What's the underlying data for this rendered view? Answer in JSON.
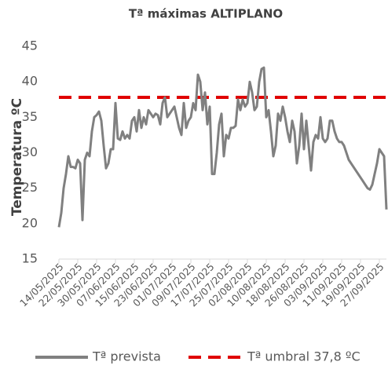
{
  "chart_data": {
    "type": "line",
    "title": "Tª máximas ALTIPLANO",
    "y_label": "Temperatura ºC",
    "categories": [
      "14/05/2025",
      null,
      null,
      null,
      null,
      null,
      null,
      null,
      "22/05/2025",
      null,
      null,
      null,
      null,
      null,
      null,
      null,
      "30/05/2025",
      null,
      null,
      null,
      null,
      null,
      null,
      null,
      "07/06/2025",
      null,
      null,
      null,
      null,
      null,
      null,
      null,
      "15/06/2025",
      null,
      null,
      null,
      null,
      null,
      null,
      null,
      "23/06/2025",
      null,
      null,
      null,
      null,
      null,
      null,
      null,
      "01/07/2025",
      null,
      null,
      null,
      null,
      null,
      null,
      null,
      "09/07/2025",
      null,
      null,
      null,
      null,
      null,
      null,
      null,
      "17/07/2025",
      null,
      null,
      null,
      null,
      null,
      null,
      null,
      "25/07/2025",
      null,
      null,
      null,
      null,
      null,
      null,
      null,
      "02/08/2025",
      null,
      null,
      null,
      null,
      null,
      null,
      null,
      "10/08/2025",
      null,
      null,
      null,
      null,
      null,
      null,
      null,
      "18/08/2025",
      null,
      null,
      null,
      null,
      null,
      null,
      null,
      "26/08/2025",
      null,
      null,
      null,
      null,
      null,
      null,
      null,
      "03/09/2025",
      null,
      null,
      null,
      null,
      null,
      null,
      null,
      "11/09/2025",
      null,
      null,
      null,
      null,
      null,
      null,
      null,
      "19/09/2025",
      null,
      null,
      null,
      null,
      null,
      null,
      null,
      "27/09/2025",
      null,
      null,
      null
    ],
    "series": [
      {
        "name": "Tª prevista",
        "color": "#808080",
        "values": [
          19.5,
          21.5,
          25,
          27,
          29.5,
          28,
          28,
          27.8,
          29,
          28.5,
          20.5,
          29,
          30,
          29.5,
          33,
          35,
          35.3,
          35.8,
          34.5,
          31,
          27.8,
          28.5,
          30.5,
          30.5,
          37,
          32,
          31.8,
          33,
          32,
          32.5,
          32,
          34.5,
          35,
          33,
          36,
          33.5,
          35,
          34,
          36,
          35.5,
          35,
          35.5,
          35.3,
          34,
          37,
          37.8,
          35,
          35.5,
          36,
          36.5,
          35,
          33.5,
          32.5,
          37,
          33.5,
          34.5,
          35,
          37,
          36,
          41,
          40,
          36,
          38.5,
          34,
          36.5,
          27,
          27,
          30,
          34,
          35.5,
          29.5,
          32.5,
          32,
          33.5,
          33.5,
          33.8,
          37.5,
          36,
          37.5,
          36.5,
          37,
          40,
          38.5,
          36,
          36.5,
          40,
          41.8,
          42,
          35,
          36,
          33,
          29.5,
          31,
          35.5,
          34.5,
          36.5,
          35,
          33,
          31.5,
          34.5,
          33,
          28.5,
          31,
          35.5,
          30.5,
          34.5,
          31,
          27.5,
          31.5,
          32.5,
          32,
          35,
          32,
          31.5,
          32,
          34.5,
          34.5,
          33,
          32,
          31.5,
          31.5,
          31,
          30,
          29,
          28.5,
          28,
          27.5,
          27,
          26.5,
          26,
          25.5,
          25,
          24.8,
          25.5,
          27,
          28.5,
          30.5,
          30,
          29.5,
          22
        ]
      }
    ],
    "threshold": {
      "name": "Tª umbral 37,8 ºC",
      "value": 37.8,
      "color": "#e00000"
    },
    "ylim": [
      15,
      45
    ],
    "yticks": [
      15,
      20,
      25,
      30,
      35,
      40,
      45
    ]
  }
}
